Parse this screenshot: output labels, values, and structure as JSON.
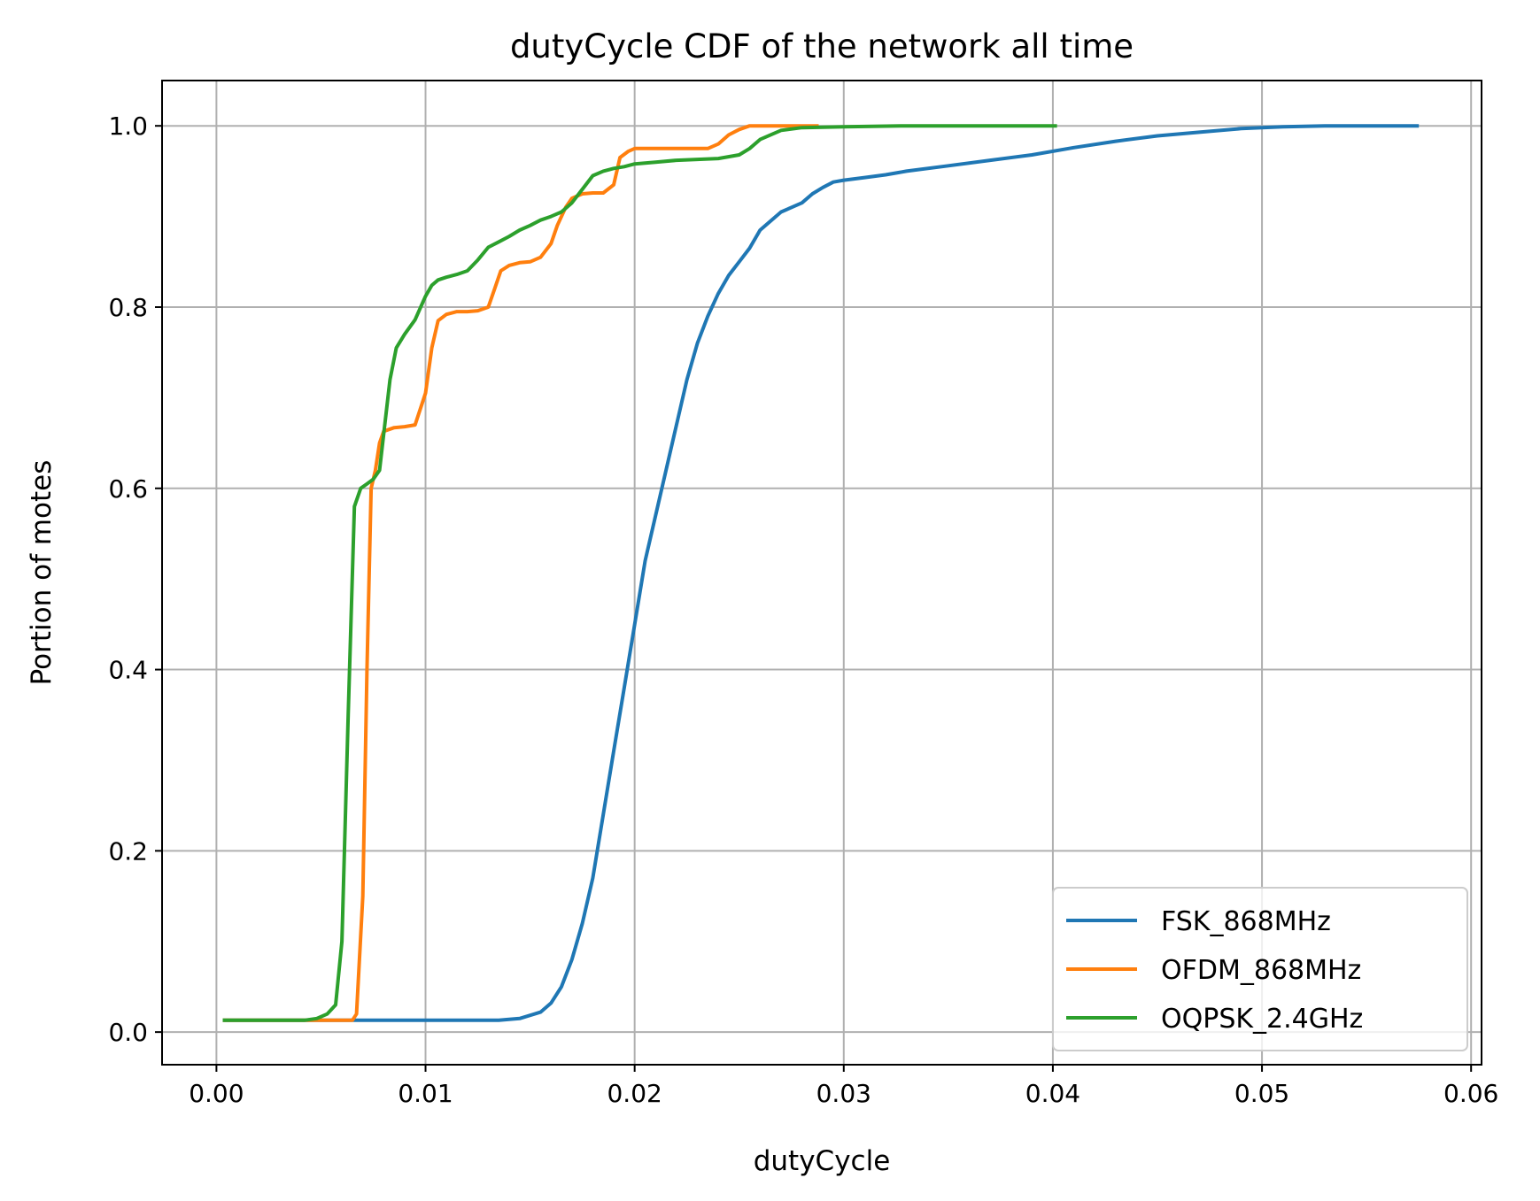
{
  "chart_data": {
    "type": "line",
    "title": "dutyCycle CDF of the network all time",
    "xlabel": "dutyCycle",
    "ylabel": "Portion of motes",
    "xlim": [
      -0.0026,
      0.0605
    ],
    "ylim": [
      -0.036,
      1.05
    ],
    "xticks": [
      "0.00",
      "0.01",
      "0.02",
      "0.03",
      "0.04",
      "0.05",
      "0.06"
    ],
    "xtick_values": [
      0.0,
      0.01,
      0.02,
      0.03,
      0.04,
      0.05,
      0.06
    ],
    "yticks": [
      "0.0",
      "0.2",
      "0.4",
      "0.6",
      "0.8",
      "1.0"
    ],
    "ytick_values": [
      0.0,
      0.2,
      0.4,
      0.6,
      0.8,
      1.0
    ],
    "grid": true,
    "legend_position": "lower-right",
    "series": [
      {
        "name": "FSK_868MHz",
        "color": "#1f77b4",
        "x": [
          0.0003,
          0.0135,
          0.0145,
          0.0155,
          0.016,
          0.0165,
          0.017,
          0.0175,
          0.018,
          0.0185,
          0.019,
          0.0195,
          0.02,
          0.0205,
          0.021,
          0.0215,
          0.022,
          0.0225,
          0.023,
          0.0235,
          0.024,
          0.0245,
          0.025,
          0.0255,
          0.026,
          0.027,
          0.028,
          0.0285,
          0.029,
          0.0295,
          0.03,
          0.031,
          0.032,
          0.033,
          0.035,
          0.037,
          0.039,
          0.041,
          0.043,
          0.045,
          0.047,
          0.049,
          0.051,
          0.053,
          0.0575
        ],
        "y": [
          0.013,
          0.013,
          0.015,
          0.022,
          0.032,
          0.05,
          0.08,
          0.12,
          0.17,
          0.24,
          0.31,
          0.38,
          0.45,
          0.52,
          0.57,
          0.62,
          0.67,
          0.72,
          0.76,
          0.79,
          0.815,
          0.835,
          0.85,
          0.865,
          0.885,
          0.905,
          0.915,
          0.925,
          0.932,
          0.938,
          0.94,
          0.943,
          0.946,
          0.95,
          0.956,
          0.962,
          0.968,
          0.976,
          0.983,
          0.989,
          0.993,
          0.997,
          0.999,
          1.0,
          1.0
        ]
      },
      {
        "name": "OFDM_868MHz",
        "color": "#ff7f0e",
        "x": [
          0.0003,
          0.0065,
          0.0067,
          0.007,
          0.0072,
          0.0074,
          0.0076,
          0.0078,
          0.008,
          0.0085,
          0.009,
          0.0095,
          0.01,
          0.0103,
          0.0106,
          0.011,
          0.0115,
          0.012,
          0.0125,
          0.013,
          0.0133,
          0.0136,
          0.014,
          0.0145,
          0.015,
          0.0155,
          0.016,
          0.0163,
          0.0167,
          0.017,
          0.0175,
          0.018,
          0.0185,
          0.019,
          0.0193,
          0.0197,
          0.02,
          0.0205,
          0.021,
          0.022,
          0.023,
          0.0235,
          0.024,
          0.0245,
          0.025,
          0.0255,
          0.026,
          0.027,
          0.028,
          0.0288
        ],
        "y": [
          0.013,
          0.013,
          0.02,
          0.15,
          0.4,
          0.6,
          0.62,
          0.65,
          0.663,
          0.667,
          0.668,
          0.67,
          0.705,
          0.755,
          0.785,
          0.792,
          0.795,
          0.795,
          0.796,
          0.8,
          0.82,
          0.84,
          0.846,
          0.849,
          0.85,
          0.855,
          0.87,
          0.89,
          0.91,
          0.92,
          0.925,
          0.926,
          0.926,
          0.935,
          0.965,
          0.972,
          0.975,
          0.975,
          0.975,
          0.975,
          0.975,
          0.975,
          0.98,
          0.99,
          0.996,
          1.0,
          1.0,
          1.0,
          1.0,
          1.0
        ]
      },
      {
        "name": "OQPSK_2.4GHz",
        "color": "#2ca02c",
        "x": [
          0.0003,
          0.0042,
          0.0048,
          0.0053,
          0.0057,
          0.006,
          0.0063,
          0.0066,
          0.0069,
          0.0072,
          0.0075,
          0.0078,
          0.008,
          0.0083,
          0.0086,
          0.009,
          0.0095,
          0.01,
          0.0103,
          0.0106,
          0.011,
          0.0115,
          0.012,
          0.0125,
          0.013,
          0.0135,
          0.014,
          0.0145,
          0.015,
          0.0155,
          0.016,
          0.0165,
          0.017,
          0.0175,
          0.018,
          0.0185,
          0.019,
          0.0195,
          0.02,
          0.021,
          0.022,
          0.023,
          0.024,
          0.025,
          0.0255,
          0.026,
          0.0265,
          0.027,
          0.028,
          0.03,
          0.033,
          0.0402
        ],
        "y": [
          0.013,
          0.013,
          0.015,
          0.02,
          0.03,
          0.1,
          0.35,
          0.58,
          0.6,
          0.605,
          0.61,
          0.62,
          0.66,
          0.72,
          0.755,
          0.77,
          0.786,
          0.812,
          0.824,
          0.83,
          0.833,
          0.836,
          0.84,
          0.852,
          0.866,
          0.872,
          0.878,
          0.885,
          0.89,
          0.896,
          0.9,
          0.905,
          0.915,
          0.93,
          0.945,
          0.95,
          0.953,
          0.955,
          0.958,
          0.96,
          0.962,
          0.963,
          0.964,
          0.968,
          0.975,
          0.985,
          0.99,
          0.995,
          0.998,
          0.999,
          1.0,
          1.0
        ]
      }
    ]
  }
}
